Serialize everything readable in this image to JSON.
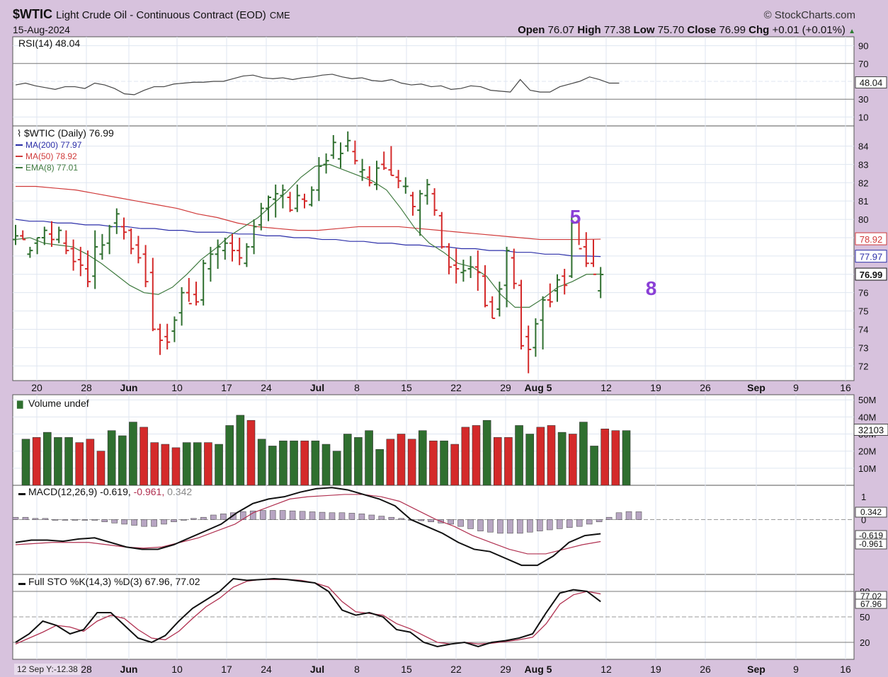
{
  "header": {
    "symbol": "$WTIC",
    "description": "Light Crude Oil - Continuous Contract (EOD)",
    "exchange": "CME",
    "date": "15-Aug-2024",
    "brand": "StockCharts.com",
    "open_label": "Open",
    "open": "76.07",
    "high_label": "High",
    "high": "77.38",
    "low_label": "Low",
    "low": "75.70",
    "close_label": "Close",
    "close": "76.99",
    "chg_label": "Chg",
    "chg": "+0.01 (+0.01%)"
  },
  "cursor_readout": "12 Sep Y:-12.38",
  "colors": {
    "background": "#d7c2dd",
    "panel": "#ffffff",
    "up": "#2f6f2f",
    "down": "#d42a2a",
    "ma200": "#2b2ea8",
    "ma50": "#d03a3a",
    "ema8": "#3f7a3f",
    "annotation": "#8a3fd6"
  },
  "annotations": [
    {
      "text": "5",
      "date": "Aug 11",
      "price": 80.0
    },
    {
      "text": "8",
      "date": "Aug 17",
      "price": 76.1
    }
  ],
  "chart_data": [
    {
      "panel": "rsi",
      "type": "line",
      "title": "RSI(14) 48.04",
      "yticks": [
        "90",
        "70",
        "30",
        "10"
      ],
      "ylim": [
        0,
        100
      ],
      "last_label": "48.04",
      "values": [
        46,
        48,
        45,
        43,
        41,
        44,
        44,
        42,
        48,
        46,
        42,
        36,
        35,
        40,
        44,
        44,
        47,
        48,
        49,
        49,
        50,
        50,
        53,
        56,
        57,
        54,
        53,
        54,
        52,
        54,
        55,
        57,
        58,
        55,
        53,
        54,
        51,
        50,
        52,
        48,
        46,
        47,
        44,
        45,
        41,
        42,
        45,
        44,
        40,
        39,
        38,
        52,
        40,
        38,
        38,
        44,
        47,
        50,
        55,
        52,
        48,
        48
      ]
    },
    {
      "panel": "price",
      "type": "ohlc",
      "title": "$WTIC (Daily) 76.99",
      "legend": [
        {
          "label": "MA(200) 77.97",
          "color": "#2b2ea8"
        },
        {
          "label": "MA(50) 78.92",
          "color": "#d03a3a"
        },
        {
          "label": "EMA(8) 77.01",
          "color": "#3f7a3f"
        }
      ],
      "ylim": [
        71.2,
        85.1
      ],
      "yticks": [
        "84",
        "83",
        "82",
        "81",
        "80",
        "79",
        "78",
        "77",
        "76",
        "75",
        "74",
        "73",
        "72"
      ],
      "price_tags": [
        {
          "value": "78.92",
          "y": 78.92,
          "color": "#d03a3a"
        },
        {
          "value": "77.97",
          "y": 77.97,
          "color": "#2b2ea8"
        },
        {
          "value": "76.99",
          "y": 76.99,
          "color": "#111111"
        }
      ],
      "bars": [
        [
          79.7,
          78.6,
          78.9,
          79.1
        ],
        [
          79.4,
          78.9,
          79.1,
          78.9
        ],
        [
          78.5,
          77.9,
          78.1,
          78.3
        ],
        [
          79.0,
          78.1,
          78.7,
          79.0
        ],
        [
          79.6,
          78.6,
          79.0,
          79.4
        ],
        [
          79.9,
          78.5,
          79.2,
          78.9
        ],
        [
          79.6,
          78.7,
          78.9,
          79.4
        ],
        [
          79.4,
          78.1,
          78.7,
          78.3
        ],
        [
          78.9,
          77.2,
          78.4,
          77.7
        ],
        [
          78.5,
          76.9,
          77.8,
          77.5
        ],
        [
          78.3,
          76.3,
          77.3,
          76.6
        ],
        [
          79.4,
          76.2,
          76.9,
          78.5
        ],
        [
          79.2,
          77.8,
          78.1,
          78.6
        ],
        [
          79.7,
          78.1,
          78.7,
          79.6
        ],
        [
          80.6,
          79.2,
          79.8,
          80.3
        ],
        [
          80.1,
          78.9,
          79.6,
          79.3
        ],
        [
          79.5,
          78.1,
          79.4,
          78.4
        ],
        [
          79.1,
          77.6,
          78.6,
          77.9
        ],
        [
          78.6,
          76.3,
          78.1,
          76.6
        ],
        [
          77.9,
          73.9,
          77.1,
          74.0
        ],
        [
          74.3,
          72.6,
          74.0,
          73.4
        ],
        [
          74.3,
          72.9,
          73.6,
          73.3
        ],
        [
          74.7,
          73.3,
          73.9,
          74.5
        ],
        [
          76.3,
          74.2,
          74.9,
          76.0
        ],
        [
          76.8,
          75.5,
          76.0,
          75.4
        ],
        [
          76.6,
          75.3,
          75.9,
          75.5
        ],
        [
          77.8,
          75.3,
          75.6,
          77.6
        ],
        [
          78.5,
          76.6,
          77.3,
          78.1
        ],
        [
          78.9,
          77.3,
          78.1,
          78.5
        ],
        [
          79.0,
          77.8,
          78.3,
          78.7
        ],
        [
          79.2,
          77.7,
          78.7,
          78.3
        ],
        [
          79.0,
          77.5,
          78.3,
          77.9
        ],
        [
          78.7,
          77.4,
          77.6,
          78.5
        ],
        [
          80.0,
          78.1,
          78.5,
          79.6
        ],
        [
          80.9,
          79.4,
          79.7,
          80.6
        ],
        [
          81.3,
          79.9,
          80.6,
          81.2
        ],
        [
          81.9,
          80.1,
          81.1,
          81.4
        ],
        [
          81.9,
          80.6,
          81.3,
          81.6
        ],
        [
          81.5,
          80.4,
          81.2,
          80.5
        ],
        [
          81.9,
          80.4,
          80.6,
          81.3
        ],
        [
          81.4,
          80.6,
          81.1,
          81.0
        ],
        [
          81.8,
          80.7,
          80.8,
          81.6
        ],
        [
          83.4,
          81.0,
          81.6,
          82.9
        ],
        [
          83.6,
          82.5,
          83.0,
          83.2
        ],
        [
          84.6,
          83.3,
          83.5,
          84.2
        ],
        [
          84.2,
          82.8,
          83.3,
          83.6
        ],
        [
          84.8,
          83.7,
          84.0,
          84.3
        ],
        [
          84.3,
          83.0,
          83.7,
          83.2
        ],
        [
          83.3,
          82.1,
          82.6,
          82.7
        ],
        [
          82.9,
          81.8,
          82.3,
          82.0
        ],
        [
          83.2,
          81.6,
          81.9,
          82.8
        ],
        [
          83.7,
          82.7,
          83.0,
          82.8
        ],
        [
          84.0,
          82.4,
          82.7,
          82.4
        ],
        [
          82.7,
          81.7,
          82.3,
          82.1
        ],
        [
          82.3,
          81.4,
          81.8,
          81.8
        ],
        [
          81.5,
          80.2,
          81.3,
          80.7
        ],
        [
          81.6,
          79.1,
          80.5,
          81.4
        ],
        [
          82.2,
          80.8,
          81.3,
          81.9
        ],
        [
          81.7,
          80.2,
          81.4,
          80.5
        ],
        [
          80.4,
          78.4,
          80.2,
          78.5
        ],
        [
          78.7,
          77.0,
          78.5,
          77.4
        ],
        [
          78.4,
          76.5,
          77.5,
          77.3
        ],
        [
          77.8,
          76.6,
          77.1,
          77.2
        ],
        [
          78.0,
          76.8,
          77.3,
          77.4
        ],
        [
          78.3,
          76.1,
          77.4,
          77.1
        ],
        [
          77.5,
          75.2,
          76.9,
          75.3
        ],
        [
          75.8,
          74.6,
          75.5,
          74.6
        ],
        [
          76.6,
          74.7,
          75.1,
          76.2
        ],
        [
          78.5,
          75.2,
          76.4,
          78.3
        ],
        [
          78.4,
          76.2,
          77.9,
          76.5
        ],
        [
          76.7,
          72.9,
          76.4,
          73.1
        ],
        [
          74.2,
          71.6,
          73.6,
          72.9
        ],
        [
          74.6,
          72.5,
          73.0,
          74.3
        ],
        [
          75.8,
          72.9,
          74.5,
          75.6
        ],
        [
          76.5,
          75.2,
          75.6,
          75.5
        ],
        [
          77.0,
          75.5,
          76.1,
          76.7
        ],
        [
          77.3,
          75.9,
          76.9,
          76.4
        ],
        [
          80.2,
          76.8,
          76.9,
          79.8
        ],
        [
          80.0,
          78.6,
          79.9,
          78.4
        ],
        [
          79.3,
          77.4,
          78.5,
          77.6
        ],
        [
          78.9,
          77.4,
          77.6,
          77.0
        ],
        [
          77.4,
          75.7,
          76.1,
          76.99
        ]
      ],
      "ma200": [
        80.0,
        79.9,
        79.9,
        79.8,
        79.8,
        79.7,
        79.7,
        79.6,
        79.6,
        79.5,
        79.5,
        79.4,
        79.4,
        79.3,
        79.3,
        79.3,
        79.2,
        79.2,
        79.1,
        79.1,
        79.0,
        79.0,
        78.9,
        78.9,
        78.8,
        78.8,
        78.7,
        78.7,
        78.6,
        78.6,
        78.5,
        78.5,
        78.4,
        78.4,
        78.3,
        78.3,
        78.2,
        78.2,
        78.1,
        78.1,
        78.0,
        78.0,
        77.97
      ],
      "ma50": [
        81.8,
        81.8,
        81.7,
        81.6,
        81.4,
        81.2,
        81.0,
        80.8,
        80.6,
        80.3,
        80.1,
        79.8,
        79.6,
        79.5,
        79.4,
        79.4,
        79.5,
        79.6,
        79.6,
        79.6,
        79.5,
        79.4,
        79.3,
        79.2,
        79.1,
        79.0,
        78.9,
        78.9,
        78.9,
        78.92
      ],
      "ema8": [
        78.9,
        79.0,
        78.7,
        78.6,
        78.5,
        78.1,
        77.6,
        77.0,
        76.4,
        76.0,
        75.9,
        76.3,
        77.0,
        77.8,
        78.4,
        79.1,
        79.6,
        80.1,
        80.8,
        81.5,
        82.3,
        82.9,
        83.0,
        82.7,
        82.4,
        82.1,
        81.6,
        80.6,
        79.5,
        78.7,
        78.2,
        77.6,
        77.4,
        76.9,
        75.9,
        75.2,
        75.2,
        75.7,
        76.3,
        76.6,
        77.0,
        77.01
      ]
    },
    {
      "panel": "volume",
      "type": "bar",
      "title": "Volume undef",
      "yticks": [
        "50M",
        "40M",
        "30M",
        "20M",
        "10M"
      ],
      "ylim": [
        0,
        53
      ],
      "last_label": "32103",
      "values": [
        27,
        28,
        31,
        28,
        28,
        25,
        27,
        20,
        32,
        29,
        37,
        34,
        25,
        24,
        22,
        25,
        25,
        25,
        24,
        35,
        41,
        38,
        27,
        23,
        26,
        26,
        26,
        26,
        24,
        20,
        30,
        28,
        32,
        21,
        27,
        30,
        27,
        32,
        26,
        26,
        24,
        34,
        35,
        38,
        28,
        28,
        35,
        30,
        34,
        35,
        31,
        30,
        37,
        23,
        33,
        32,
        32
      ]
    },
    {
      "panel": "macd",
      "type": "line",
      "title": "MACD(12,26,9)",
      "values_text": [
        "-0.619",
        "-0.961",
        "0.342"
      ],
      "yticks": [
        "1",
        "0"
      ],
      "ylim": [
        -2.4,
        1.5
      ],
      "tags": [
        "0.342",
        "-0.619",
        "-0.961"
      ],
      "macd": [
        -1.0,
        -0.9,
        -0.9,
        -0.95,
        -0.85,
        -0.8,
        -1.0,
        -1.2,
        -1.3,
        -1.3,
        -1.1,
        -0.8,
        -0.5,
        -0.2,
        0.3,
        0.7,
        0.9,
        1.0,
        1.2,
        1.35,
        1.4,
        1.3,
        1.1,
        0.9,
        0.6,
        0.0,
        -0.3,
        -0.6,
        -1.0,
        -1.3,
        -1.4,
        -1.7,
        -2.0,
        -2.0,
        -1.6,
        -1.0,
        -0.7,
        -0.619
      ],
      "signal": [
        -1.1,
        -1.05,
        -1.0,
        -1.0,
        -1.0,
        -1.1,
        -1.2,
        -1.25,
        -1.2,
        -1.0,
        -0.8,
        -0.5,
        -0.2,
        0.3,
        0.6,
        0.9,
        1.0,
        1.05,
        1.1,
        1.1,
        1.0,
        0.8,
        0.4,
        0.0,
        -0.3,
        -0.7,
        -1.0,
        -1.3,
        -1.5,
        -1.5,
        -1.3,
        -1.1,
        -0.961
      ],
      "hist": [
        0.1,
        0.1,
        0.05,
        0.05,
        0.0,
        0.0,
        0.0,
        0.0,
        0.0,
        -0.1,
        -0.15,
        -0.2,
        -0.25,
        -0.3,
        -0.3,
        -0.2,
        -0.1,
        0.0,
        0.05,
        0.1,
        0.2,
        0.25,
        0.3,
        0.35,
        0.38,
        0.4,
        0.4,
        0.4,
        0.38,
        0.36,
        0.34,
        0.32,
        0.3,
        0.3,
        0.28,
        0.25,
        0.2,
        0.15,
        0.1,
        0.05,
        0.0,
        -0.05,
        -0.1,
        -0.15,
        -0.2,
        -0.3,
        -0.4,
        -0.5,
        -0.55,
        -0.6,
        -0.6,
        -0.6,
        -0.55,
        -0.5,
        -0.45,
        -0.4,
        -0.35,
        -0.3,
        -0.2,
        -0.1,
        0.1,
        0.3,
        0.35,
        0.342
      ]
    },
    {
      "panel": "sto",
      "type": "line",
      "title": "Full STO %K(14,3) %D(3) 67.96, 77.02",
      "yticks": [
        "80",
        "50",
        "20"
      ],
      "ylim": [
        0,
        100
      ],
      "tags": [
        "77.02",
        "67.96"
      ],
      "k": [
        20,
        30,
        45,
        40,
        30,
        35,
        55,
        55,
        40,
        25,
        20,
        28,
        45,
        60,
        70,
        80,
        95,
        93,
        94,
        95,
        94,
        92,
        90,
        80,
        58,
        52,
        55,
        50,
        35,
        32,
        20,
        15,
        18,
        20,
        15,
        20,
        22,
        25,
        30,
        55,
        78,
        82,
        80,
        67.96
      ],
      "d": [
        18,
        25,
        32,
        40,
        38,
        33,
        45,
        52,
        48,
        35,
        25,
        23,
        33,
        48,
        62,
        72,
        85,
        92,
        94,
        94,
        94,
        93,
        90,
        85,
        68,
        56,
        54,
        52,
        42,
        36,
        28,
        20,
        18,
        20,
        18,
        19,
        21,
        23,
        26,
        42,
        65,
        76,
        80,
        77.02
      ]
    }
  ],
  "xaxis": {
    "labels": [
      "20",
      "28",
      "Jun",
      "10",
      "17",
      "24",
      "Jul",
      "8",
      "15",
      "22",
      "29",
      "Aug 5",
      "12",
      "19",
      "26",
      "Sep",
      "9",
      "16"
    ],
    "bold": [
      "Jun",
      "Jul",
      "Aug 5",
      "Sep"
    ]
  }
}
